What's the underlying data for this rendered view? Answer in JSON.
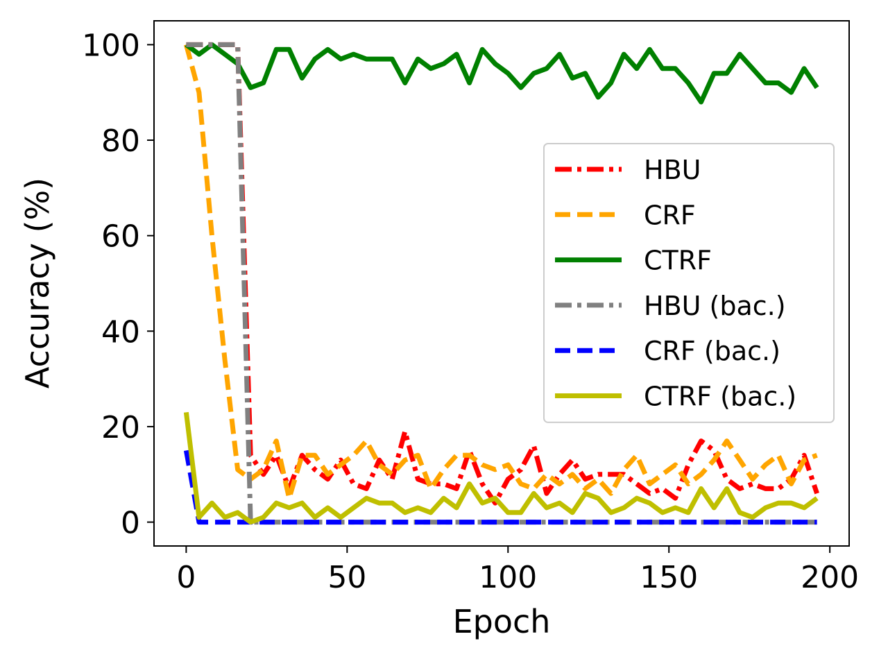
{
  "chart_data": {
    "type": "line",
    "title": "",
    "xlabel": "Epoch",
    "ylabel": "Accuracy (%)",
    "xlim": [
      -10,
      206
    ],
    "ylim": [
      -5,
      105
    ],
    "xticks": [
      0,
      50,
      100,
      150,
      200
    ],
    "yticks": [
      0,
      20,
      40,
      60,
      80,
      100
    ],
    "grid": false,
    "legend_position": "center-right",
    "x": [
      0,
      4,
      8,
      12,
      16,
      20,
      24,
      28,
      32,
      36,
      40,
      44,
      48,
      52,
      56,
      60,
      64,
      68,
      72,
      76,
      80,
      84,
      88,
      92,
      96,
      100,
      104,
      108,
      112,
      116,
      120,
      124,
      128,
      132,
      136,
      140,
      144,
      148,
      152,
      156,
      160,
      164,
      168,
      172,
      176,
      180,
      184,
      188,
      192,
      196
    ],
    "series": [
      {
        "name": "HBU",
        "color": "#ff0000",
        "style": "dashdot",
        "values": [
          100,
          100,
          100,
          100,
          100,
          14,
          10,
          14,
          7,
          14,
          11,
          9,
          13,
          8,
          7,
          13,
          9,
          19,
          9,
          8,
          8,
          7,
          15,
          8,
          4,
          9,
          11,
          16,
          6,
          10,
          13,
          9,
          10,
          10,
          10,
          8,
          6,
          7,
          5,
          12,
          17,
          15,
          9,
          7,
          8,
          7,
          7,
          9,
          14,
          6
        ]
      },
      {
        "name": "CRF",
        "color": "#ffa500",
        "style": "dashed",
        "values": [
          100,
          90,
          60,
          34,
          11,
          9,
          11,
          17,
          5,
          14,
          14,
          10,
          12,
          14,
          17,
          12,
          10,
          13,
          14,
          7,
          11,
          14,
          14,
          12,
          11,
          12,
          8,
          7,
          10,
          8,
          10,
          7,
          9,
          6,
          11,
          14,
          8,
          10,
          12,
          8,
          10,
          13,
          17,
          13,
          9,
          12,
          14,
          8,
          13,
          14
        ]
      },
      {
        "name": "CTRF",
        "color": "#008000",
        "style": "solid",
        "values": [
          100,
          98,
          100,
          98,
          96,
          91,
          92,
          99,
          99,
          93,
          97,
          99,
          97,
          98,
          97,
          97,
          97,
          92,
          97,
          95,
          96,
          98,
          92,
          99,
          96,
          94,
          91,
          94,
          95,
          98,
          93,
          94,
          89,
          92,
          98,
          95,
          99,
          95,
          95,
          92,
          88,
          94,
          94,
          98,
          95,
          92,
          92,
          90,
          95,
          91
        ]
      },
      {
        "name": "HBU (bac.)",
        "color": "#808080",
        "style": "dashdot",
        "values": [
          100,
          100,
          100,
          100,
          100,
          0,
          0,
          0,
          0,
          0,
          0,
          0,
          0,
          0,
          0,
          0,
          0,
          0,
          0,
          0,
          0,
          0,
          0,
          0,
          0,
          0,
          0,
          0,
          0,
          0,
          0,
          0,
          0,
          0,
          0,
          0,
          0,
          0,
          0,
          0,
          0,
          0,
          0,
          0,
          0,
          0,
          0,
          0,
          0,
          0
        ]
      },
      {
        "name": "CRF (bac.)",
        "color": "#0000ff",
        "style": "dashed",
        "values": [
          15,
          0,
          0,
          0,
          0,
          0,
          0,
          0,
          0,
          0,
          0,
          0,
          0,
          0,
          0,
          0,
          0,
          0,
          0,
          0,
          0,
          0,
          0,
          0,
          0,
          0,
          0,
          0,
          0,
          0,
          0,
          0,
          0,
          0,
          0,
          0,
          0,
          0,
          0,
          0,
          0,
          0,
          0,
          0,
          0,
          0,
          0,
          0,
          0,
          0
        ]
      },
      {
        "name": "CTRF (bac.)",
        "color": "#bfbf00",
        "style": "solid",
        "values": [
          23,
          1,
          4,
          1,
          2,
          0,
          1,
          4,
          3,
          4,
          1,
          3,
          1,
          3,
          5,
          4,
          4,
          2,
          3,
          2,
          5,
          3,
          8,
          4,
          5,
          2,
          2,
          6,
          3,
          4,
          2,
          6,
          5,
          2,
          3,
          5,
          4,
          2,
          3,
          2,
          7,
          3,
          7,
          2,
          1,
          3,
          4,
          4,
          3,
          5
        ]
      }
    ]
  }
}
